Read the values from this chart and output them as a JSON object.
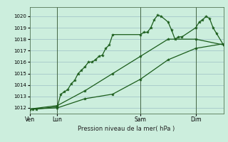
{
  "bg_color": "#cceedd",
  "grid_color": "#aacccc",
  "line_color": "#1a5c1a",
  "title": "Pression niveau de la mer( hPa )",
  "ylim": [
    1011.5,
    1020.8
  ],
  "yticks": [
    1012,
    1013,
    1014,
    1015,
    1016,
    1017,
    1018,
    1019,
    1020
  ],
  "day_labels": [
    "Ven",
    "Lun",
    "Sam",
    "Dim"
  ],
  "day_positions": [
    0,
    24,
    96,
    144
  ],
  "vline_positions": [
    24,
    96,
    144
  ],
  "series1_x": [
    0,
    3,
    6,
    24,
    27,
    30,
    33,
    36,
    39,
    42,
    45,
    48,
    51,
    54,
    57,
    60,
    63,
    66,
    69,
    72,
    96,
    99,
    102,
    105,
    108,
    111,
    114,
    120,
    123,
    126,
    129,
    132,
    144,
    147,
    150,
    153,
    156,
    159,
    162,
    168
  ],
  "series1_y": [
    1011.9,
    1011.9,
    1011.9,
    1012.1,
    1013.2,
    1013.4,
    1013.6,
    1014.1,
    1014.4,
    1015.0,
    1015.3,
    1015.6,
    1016.0,
    1016.0,
    1016.2,
    1016.5,
    1016.6,
    1017.2,
    1017.5,
    1018.4,
    1018.4,
    1018.6,
    1018.6,
    1019.0,
    1019.7,
    1020.1,
    1020.0,
    1019.5,
    1018.8,
    1018.0,
    1018.2,
    1018.2,
    1019.0,
    1019.5,
    1019.7,
    1020.0,
    1019.8,
    1019.0,
    1018.5,
    1017.5
  ],
  "series2_x": [
    0,
    24,
    48,
    72,
    96,
    120,
    144,
    168
  ],
  "series2_y": [
    1011.9,
    1012.2,
    1013.5,
    1015.0,
    1016.5,
    1018.0,
    1018.0,
    1017.5
  ],
  "series3_x": [
    0,
    24,
    48,
    72,
    96,
    120,
    144,
    168
  ],
  "series3_y": [
    1011.9,
    1012.0,
    1012.8,
    1013.2,
    1014.5,
    1016.2,
    1017.2,
    1017.6
  ],
  "total_hours": 168
}
